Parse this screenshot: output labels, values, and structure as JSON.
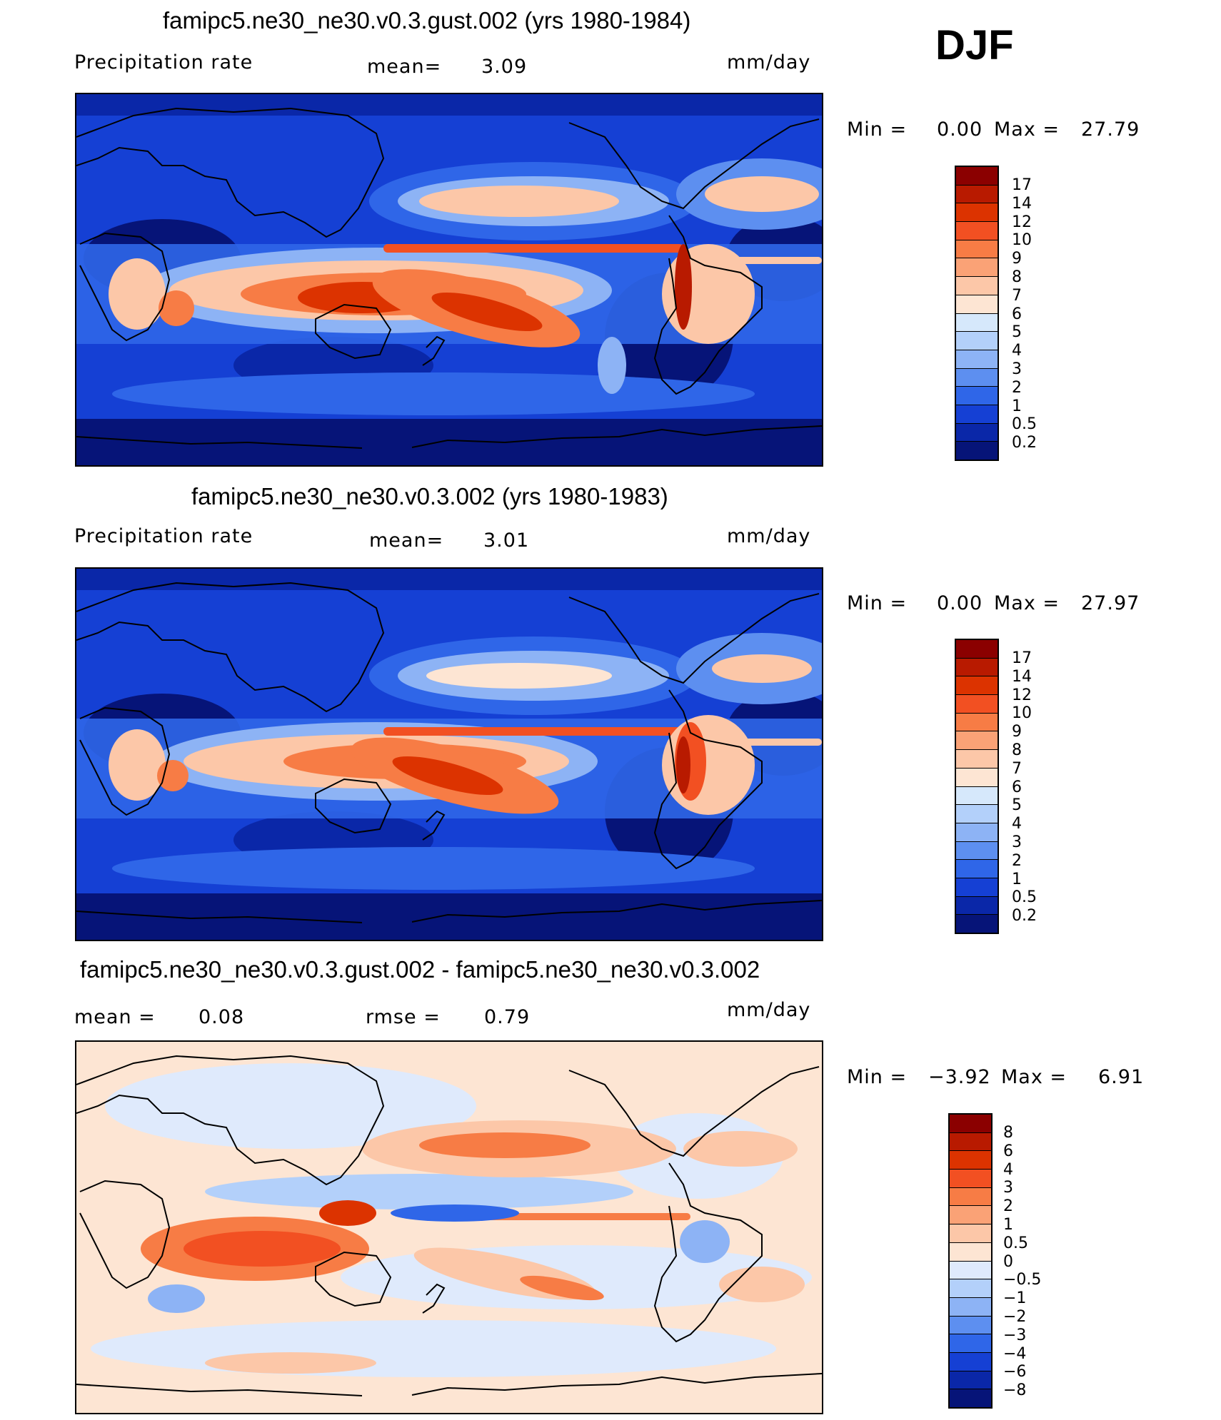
{
  "season": "DJF",
  "panels": [
    {
      "title": "famipc5.ne30_ne30.v0.3.gust.002 (yrs 1980-1984)",
      "left_label": "Precipitation  rate",
      "mid_label": "mean=",
      "mid_value": "3.09",
      "units": "mm/day",
      "min_label": "Min  =",
      "min_value": "0.00",
      "max_label": "Max  =",
      "max_value": "27.79",
      "colorbar": {
        "levels": [
          "17",
          "14",
          "12",
          "10",
          "9",
          "8",
          "7",
          "6",
          "5",
          "4",
          "3",
          "2",
          "1",
          "0.5",
          "0.2"
        ],
        "colors": [
          "#8b0000",
          "#b81a00",
          "#dc3300",
          "#f25022",
          "#f77c45",
          "#faa276",
          "#fcc7a8",
          "#fde5d3",
          "#d6e8fb",
          "#b3d0fa",
          "#8db3f5",
          "#5d8ff0",
          "#2f66e8",
          "#1540d4",
          "#0a27a8",
          "#061478"
        ]
      }
    },
    {
      "title": "famipc5.ne30_ne30.v0.3.002 (yrs 1980-1983)",
      "left_label": "Precipitation  rate",
      "mid_label": "mean=",
      "mid_value": "3.01",
      "units": "mm/day",
      "min_label": "Min  =",
      "min_value": "0.00",
      "max_label": "Max  =",
      "max_value": "27.97",
      "colorbar": {
        "levels": [
          "17",
          "14",
          "12",
          "10",
          "9",
          "8",
          "7",
          "6",
          "5",
          "4",
          "3",
          "2",
          "1",
          "0.5",
          "0.2"
        ],
        "colors": [
          "#8b0000",
          "#b81a00",
          "#dc3300",
          "#f25022",
          "#f77c45",
          "#faa276",
          "#fcc7a8",
          "#fde5d3",
          "#d6e8fb",
          "#b3d0fa",
          "#8db3f5",
          "#5d8ff0",
          "#2f66e8",
          "#1540d4",
          "#0a27a8",
          "#061478"
        ]
      }
    },
    {
      "title": "famipc5.ne30_ne30.v0.3.gust.002 - famipc5.ne30_ne30.v0.3.002",
      "left_label": "mean  =",
      "left_value": "0.08",
      "mid_label": "rmse  =",
      "mid_value": "0.79",
      "units": "mm/day",
      "min_label": "Min  =",
      "min_value": "−3.92",
      "max_label": "Max  =",
      "max_value": "6.91",
      "colorbar": {
        "levels": [
          "8",
          "6",
          "4",
          "3",
          "2",
          "1",
          "0.5",
          "0",
          "−0.5",
          "−1",
          "−2",
          "−3",
          "−4",
          "−6",
          "−8"
        ],
        "colors": [
          "#8b0000",
          "#b81a00",
          "#dc3300",
          "#f25022",
          "#f77c45",
          "#faa276",
          "#fcc7a8",
          "#fde5d3",
          "#dfeafc",
          "#b3d0fa",
          "#8db3f5",
          "#5d8ff0",
          "#2f66e8",
          "#1540d4",
          "#0a27a8",
          "#061478"
        ]
      }
    }
  ],
  "palette": {
    "ocean_dry": "#0a27a8",
    "ocean_mid": "#2f66e8",
    "light_blue": "#8db3f5",
    "wet_warm": "#f25022",
    "diff_neutral": "#fde5d3",
    "diff_neg": "#dfeafc"
  }
}
